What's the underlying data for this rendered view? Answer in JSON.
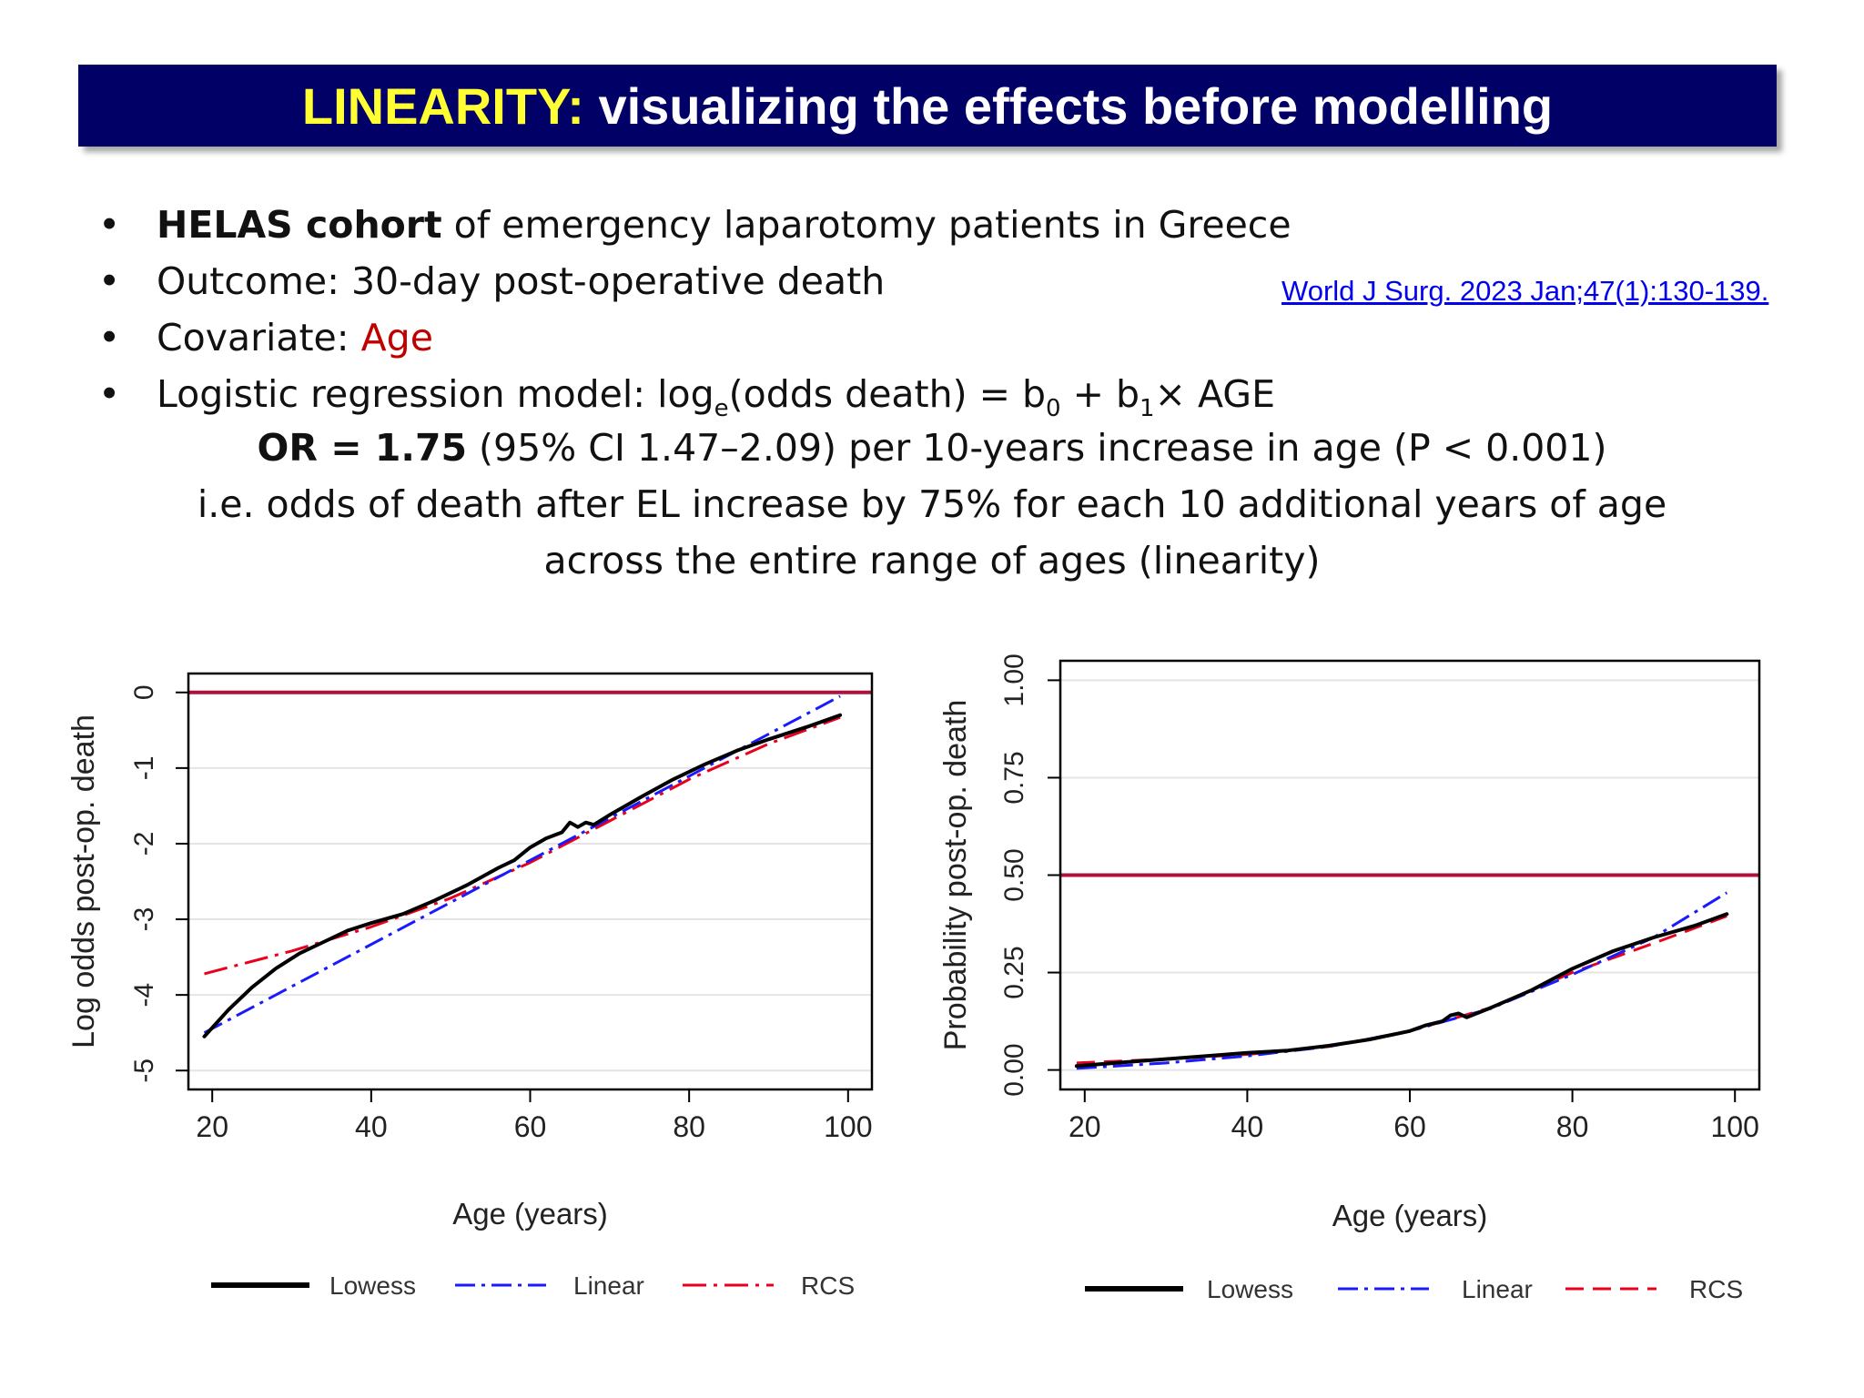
{
  "slide": {
    "title_highlight": "LINEARITY:",
    "title_rest": " visualizing the effects before modelling",
    "bullets": {
      "b1_bold": "HELAS cohort",
      "b1_rest": " of emergency laparotomy patients in Greece",
      "b2": "Outcome: 30-day post-operative death",
      "b3_label": "Covariate: ",
      "b3_value": "Age",
      "b4_a": "Logistic regression model:  log",
      "b4_sub_e": "e",
      "b4_b": "(odds death) = b",
      "b4_sub_0": "0",
      "b4_c": " + b",
      "b4_sub_1": "1",
      "b4_d": "× AGE"
    },
    "or_label": "OR = ",
    "or_value": " 1.75",
    "or_rest": " (95% CI 1.47–2.09) per 10-years increase in age (P < 0.001)",
    "interp": "i.e. odds of death after EL increase by 75% for each 10 additional years of age",
    "interp_red": "across the entire range of ages (linearity)",
    "reference": "World J Surg. 2023 Jan;47(1):130-139."
  },
  "colors": {
    "title_bg": "#000066",
    "title_highlight": "#ffff33",
    "accent_red": "#c00000",
    "ref_line": "#b0103a",
    "lowess": "#000000",
    "linear": "#1a1aff",
    "rcs": "#e8001c"
  },
  "chart_data": [
    {
      "type": "line",
      "xlabel": "Age (years)",
      "ylabel": "Log odds post-op. death",
      "xlim": [
        17,
        103
      ],
      "ylim": [
        -5.25,
        0.25
      ],
      "xticks": [
        "20",
        "40",
        "60",
        "80",
        "100"
      ],
      "yticks": [
        "-5",
        "-4",
        "-3",
        "-2",
        "-1",
        "0"
      ],
      "reference_line": 0,
      "grid": true,
      "legend": [
        "Lowess",
        "Linear",
        "RCS"
      ],
      "legend_position": "bottom",
      "series": [
        {
          "name": "Lowess",
          "style": "solid",
          "x": [
            19,
            22,
            25,
            28,
            31,
            34,
            37,
            40,
            44,
            48,
            52,
            56,
            58,
            60,
            62,
            64,
            65,
            66,
            67,
            68,
            70,
            74,
            78,
            82,
            86,
            90,
            95,
            99
          ],
          "y": [
            -4.55,
            -4.2,
            -3.9,
            -3.65,
            -3.45,
            -3.3,
            -3.15,
            -3.05,
            -2.93,
            -2.75,
            -2.55,
            -2.32,
            -2.22,
            -2.05,
            -1.93,
            -1.85,
            -1.72,
            -1.78,
            -1.72,
            -1.75,
            -1.62,
            -1.38,
            -1.15,
            -0.95,
            -0.77,
            -0.62,
            -0.45,
            -0.3
          ]
        },
        {
          "name": "Linear",
          "style": "dashdot",
          "x": [
            19,
            99
          ],
          "y": [
            -4.5,
            -0.05
          ]
        },
        {
          "name": "RCS",
          "style": "longdashdot",
          "x": [
            19,
            30,
            40,
            50,
            60,
            70,
            80,
            90,
            99
          ],
          "y": [
            -3.72,
            -3.42,
            -3.1,
            -2.72,
            -2.25,
            -1.7,
            -1.15,
            -0.68,
            -0.33
          ]
        }
      ]
    },
    {
      "type": "line",
      "xlabel": "Age (years)",
      "ylabel": "Probability post-op. death",
      "xlim": [
        17,
        103
      ],
      "ylim": [
        -0.05,
        1.05
      ],
      "xticks": [
        "20",
        "40",
        "60",
        "80",
        "100"
      ],
      "yticks": [
        "0.00",
        "0.25",
        "0.50",
        "0.75",
        "1.00"
      ],
      "reference_line": 0.5,
      "grid": true,
      "legend": [
        "Lowess",
        "Linear",
        "RCS"
      ],
      "legend_position": "bottom",
      "series": [
        {
          "name": "Lowess",
          "style": "solid",
          "x": [
            19,
            25,
            30,
            35,
            40,
            45,
            50,
            55,
            60,
            62,
            64,
            65,
            66,
            67,
            70,
            75,
            80,
            85,
            90,
            95,
            99
          ],
          "y": [
            0.01,
            0.02,
            0.028,
            0.036,
            0.044,
            0.05,
            0.062,
            0.078,
            0.1,
            0.115,
            0.125,
            0.14,
            0.145,
            0.135,
            0.16,
            0.205,
            0.26,
            0.305,
            0.34,
            0.37,
            0.4
          ]
        },
        {
          "name": "Linear",
          "style": "dashdot",
          "x": [
            19,
            30,
            40,
            50,
            60,
            70,
            80,
            90,
            99
          ],
          "y": [
            0.004,
            0.018,
            0.036,
            0.06,
            0.1,
            0.158,
            0.245,
            0.34,
            0.455
          ]
        },
        {
          "name": "RCS",
          "style": "dashed",
          "x": [
            19,
            30,
            40,
            50,
            60,
            70,
            80,
            90,
            99
          ],
          "y": [
            0.018,
            0.028,
            0.04,
            0.06,
            0.1,
            0.16,
            0.25,
            0.325,
            0.395
          ]
        }
      ]
    }
  ]
}
